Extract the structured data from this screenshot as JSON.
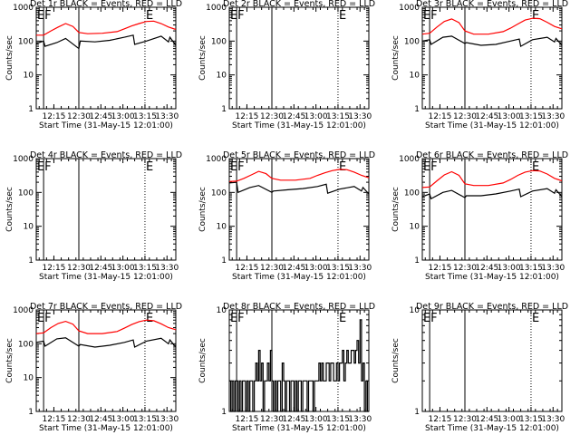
{
  "xaxis": {
    "label": "Start Time (31-May-15 12:01:00)",
    "range_min": [
      0,
      95
    ],
    "tick_minutes": [
      12,
      29,
      44,
      59,
      74,
      89
    ],
    "tick_labels": [
      "12:15",
      "12:30",
      "12:45",
      "13:00",
      "13:15",
      "13:30"
    ]
  },
  "yaxis": {
    "label": "Counts/sec",
    "scale": "log",
    "range": [
      1,
      1000
    ],
    "tick_values": [
      1,
      10,
      100,
      1000
    ],
    "tick_labels": [
      "1",
      "10",
      "100",
      "1000"
    ]
  },
  "markers": [
    {
      "label": "E",
      "minute": 0,
      "style": "dotted"
    },
    {
      "label": "F",
      "minute": 5,
      "style": "solid"
    },
    {
      "label": "",
      "minute": 29,
      "style": "solid"
    },
    {
      "label": "E",
      "minute": 74,
      "style": "dotted"
    }
  ],
  "chart_data": [
    {
      "type": "line",
      "title": "Det 1r BLACK = Events, RED = LLD",
      "ylabel": "Counts/sec",
      "xlabel": "Start Time (31-May-15 12:01:00)",
      "ylim": [
        1,
        1000
      ],
      "yscale": "log",
      "series": [
        {
          "name": "BLACK",
          "color": "#000000",
          "x": [
            0,
            5,
            6,
            14,
            20,
            29,
            30,
            40,
            50,
            60,
            66,
            67,
            75,
            85,
            90,
            91,
            95
          ],
          "y": [
            85,
            100,
            70,
            90,
            120,
            60,
            100,
            95,
            105,
            130,
            150,
            80,
            100,
            140,
            95,
            130,
            75
          ]
        },
        {
          "name": "RED",
          "color": "#ff0000",
          "x": [
            0,
            5,
            10,
            15,
            20,
            25,
            29,
            35,
            45,
            55,
            60,
            65,
            70,
            75,
            80,
            85,
            90,
            95
          ],
          "y": [
            150,
            150,
            200,
            260,
            330,
            270,
            180,
            165,
            170,
            190,
            230,
            280,
            330,
            380,
            390,
            330,
            260,
            220
          ]
        }
      ]
    },
    {
      "type": "line",
      "title": "Det 2r BLACK = Events, RED = LLD",
      "ylabel": "Counts/sec",
      "xlabel": "Start Time (31-May-15 12:01:00)",
      "ylim": [
        1,
        1000
      ],
      "yscale": "log",
      "series": []
    },
    {
      "type": "line",
      "title": "Det 3r BLACK = Events, RED = LLD",
      "ylabel": "Counts/sec",
      "xlabel": "Start Time (31-May-15 12:01:00)",
      "ylim": [
        1,
        1000
      ],
      "yscale": "log",
      "series": [
        {
          "name": "BLACK",
          "color": "#000000",
          "x": [
            0,
            5,
            6,
            14,
            20,
            29,
            30,
            40,
            50,
            60,
            66,
            67,
            75,
            85,
            90,
            91,
            95
          ],
          "y": [
            100,
            110,
            80,
            130,
            140,
            85,
            90,
            75,
            80,
            100,
            115,
            70,
            110,
            130,
            95,
            120,
            75
          ]
        },
        {
          "name": "RED",
          "color": "#ff0000",
          "x": [
            0,
            5,
            10,
            15,
            20,
            25,
            29,
            35,
            45,
            55,
            60,
            65,
            70,
            75,
            80,
            85,
            90,
            95
          ],
          "y": [
            160,
            170,
            260,
            380,
            450,
            350,
            200,
            160,
            160,
            190,
            240,
            320,
            420,
            470,
            460,
            360,
            270,
            230
          ]
        }
      ]
    },
    {
      "type": "line",
      "title": "Det 4r BLACK = Events, RED = LLD",
      "ylabel": "Counts/sec",
      "xlabel": "Start Time (31-May-15 12:01:00)",
      "ylim": [
        1,
        1000
      ],
      "yscale": "log",
      "series": []
    },
    {
      "type": "line",
      "title": "Det 5r BLACK = Events, RED = LLD",
      "ylabel": "Counts/sec",
      "xlabel": "Start Time (31-May-15 12:01:00)",
      "ylim": [
        1,
        1000
      ],
      "yscale": "log",
      "series": [
        {
          "name": "BLACK",
          "color": "#000000",
          "x": [
            0,
            5,
            6,
            14,
            20,
            29,
            30,
            40,
            50,
            60,
            66,
            67,
            75,
            85,
            90,
            91,
            95
          ],
          "y": [
            190,
            200,
            100,
            140,
            160,
            100,
            110,
            120,
            130,
            150,
            175,
            95,
            125,
            150,
            110,
            140,
            90
          ]
        },
        {
          "name": "RED",
          "color": "#ff0000",
          "x": [
            0,
            5,
            10,
            15,
            20,
            25,
            29,
            35,
            45,
            55,
            60,
            65,
            70,
            75,
            80,
            85,
            90,
            95
          ],
          "y": [
            210,
            215,
            260,
            330,
            420,
            360,
            260,
            230,
            230,
            260,
            320,
            380,
            440,
            480,
            470,
            400,
            320,
            270
          ]
        }
      ]
    },
    {
      "type": "line",
      "title": "Det 6r BLACK = Events, RED = LLD",
      "ylabel": "Counts/sec",
      "xlabel": "Start Time (31-May-15 12:01:00)",
      "ylim": [
        1,
        1000
      ],
      "yscale": "log",
      "series": [
        {
          "name": "BLACK",
          "color": "#000000",
          "x": [
            0,
            5,
            6,
            14,
            20,
            29,
            30,
            40,
            50,
            60,
            66,
            67,
            75,
            85,
            90,
            91,
            95
          ],
          "y": [
            75,
            90,
            65,
            100,
            115,
            70,
            80,
            80,
            90,
            110,
            125,
            75,
            110,
            130,
            95,
            120,
            75
          ]
        },
        {
          "name": "RED",
          "color": "#ff0000",
          "x": [
            0,
            5,
            10,
            15,
            20,
            25,
            29,
            35,
            45,
            55,
            60,
            65,
            70,
            75,
            80,
            85,
            90,
            95
          ],
          "y": [
            140,
            145,
            220,
            330,
            410,
            320,
            180,
            160,
            160,
            190,
            240,
            320,
            400,
            440,
            430,
            350,
            260,
            220
          ]
        }
      ]
    },
    {
      "type": "line",
      "title": "Det 7r BLACK = Events, RED = LLD",
      "ylabel": "Counts/sec",
      "xlabel": "Start Time (31-May-15 12:01:00)",
      "ylim": [
        1,
        1000
      ],
      "yscale": "log",
      "series": [
        {
          "name": "BLACK",
          "color": "#000000",
          "x": [
            0,
            5,
            6,
            14,
            20,
            29,
            30,
            40,
            50,
            60,
            66,
            67,
            75,
            85,
            90,
            91,
            95
          ],
          "y": [
            110,
            120,
            85,
            140,
            150,
            85,
            95,
            80,
            90,
            110,
            130,
            80,
            120,
            145,
            100,
            130,
            80
          ]
        },
        {
          "name": "RED",
          "color": "#ff0000",
          "x": [
            0,
            5,
            10,
            15,
            20,
            25,
            29,
            35,
            45,
            55,
            60,
            65,
            70,
            75,
            80,
            85,
            90,
            95
          ],
          "y": [
            200,
            210,
            300,
            400,
            460,
            380,
            240,
            200,
            200,
            230,
            290,
            370,
            450,
            500,
            480,
            390,
            300,
            260
          ]
        }
      ]
    },
    {
      "type": "line",
      "title": "Det 8r BLACK = Events, RED = LLD",
      "ylabel": "Counts/sec",
      "xlabel": "Start Time (31-May-15 12:01:00)",
      "ylim": [
        1,
        10
      ],
      "yscale": "log",
      "series": [
        {
          "name": "BLACK",
          "color": "#000000",
          "x": [
            0,
            1,
            2,
            3,
            4,
            5,
            6,
            7,
            8,
            9,
            10,
            11,
            12,
            13,
            14,
            15,
            16,
            17,
            18,
            19,
            20,
            21,
            22,
            23,
            24,
            25,
            26,
            27,
            28,
            29,
            30,
            31,
            32,
            33,
            34,
            35,
            36,
            37,
            38,
            39,
            40,
            41,
            42,
            43,
            44,
            45,
            46,
            47,
            48,
            49,
            50,
            51,
            52,
            53,
            54,
            55,
            56,
            57,
            58,
            59,
            60,
            61,
            62,
            63,
            64,
            65,
            66,
            67,
            68,
            69,
            70,
            71,
            72,
            73,
            74,
            75,
            76,
            77,
            78,
            79,
            80,
            81,
            82,
            83,
            84,
            85,
            86,
            87,
            88,
            89,
            90,
            91,
            92,
            93,
            94,
            95
          ],
          "y": [
            2,
            1,
            2,
            1,
            2,
            2,
            1,
            2,
            1,
            2,
            2,
            1,
            2,
            1,
            2,
            2,
            1,
            2,
            3,
            2,
            4,
            2,
            3,
            1,
            2,
            2,
            3,
            2,
            4,
            2,
            1,
            2,
            1,
            2,
            2,
            1,
            3,
            2,
            1,
            2,
            2,
            1,
            2,
            2,
            1,
            2,
            1,
            2,
            2,
            1,
            2,
            2,
            2,
            1,
            2,
            2,
            2,
            1,
            2,
            2,
            2,
            3,
            2,
            3,
            2,
            2,
            3,
            3,
            2,
            3,
            3,
            2,
            2,
            3,
            2,
            3,
            3,
            4,
            2,
            3,
            4,
            3,
            3,
            4,
            4,
            3,
            4,
            5,
            3,
            8,
            2,
            3,
            1,
            2,
            1,
            1
          ]
        }
      ]
    },
    {
      "type": "line",
      "title": "Det 9r BLACK = Events, RED = LLD",
      "ylabel": "Counts/sec",
      "xlabel": "Start Time (31-May-15 12:01:00)",
      "ylim": [
        1,
        10
      ],
      "yscale": "log",
      "series": []
    }
  ]
}
